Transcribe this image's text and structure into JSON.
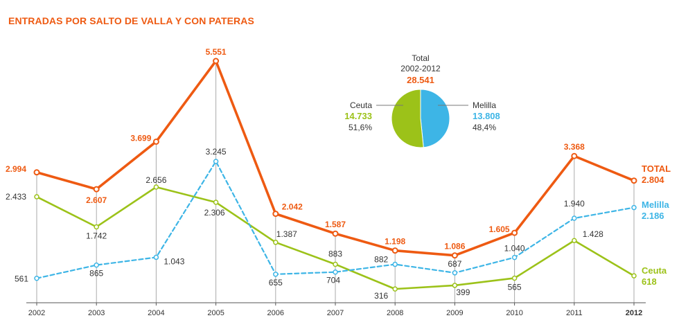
{
  "title": "ENTRADAS POR SALTO DE VALLA Y CON PATERAS",
  "colors": {
    "total": "#ee5a12",
    "melilla": "#3db5e6",
    "ceuta": "#9cc219",
    "grid": "#aaaaaa",
    "text": "#333333"
  },
  "chart_data": {
    "type": "line",
    "title": "ENTRADAS POR SALTO DE VALLA Y CON PATERAS",
    "categories": [
      "2002",
      "2003",
      "2004",
      "2005",
      "2006",
      "2007",
      "2008",
      "2009",
      "2010",
      "2011",
      "2012"
    ],
    "series": [
      {
        "name": "TOTAL",
        "end_value_label": "2.804",
        "values": [
          2994,
          2607,
          3699,
          5551,
          2042,
          1587,
          1198,
          1086,
          1605,
          3368,
          2804
        ],
        "labels": [
          "2.994",
          "2.607",
          "3.699",
          "5.551",
          "2.042",
          "1.587",
          "1.198",
          "1.086",
          "1.605",
          "3.368",
          "2.804"
        ],
        "color": "#ee5a12",
        "style": "solid"
      },
      {
        "name": "Melilla",
        "end_value_label": "2.186",
        "values": [
          561,
          865,
          1043,
          3245,
          655,
          704,
          882,
          687,
          1040,
          1940,
          2186
        ],
        "labels": [
          "561",
          "865",
          "1.043",
          "3.245",
          "655",
          "704",
          "882",
          "687",
          "1.040",
          "1.940",
          "2.186"
        ],
        "color": "#3db5e6",
        "style": "dashed"
      },
      {
        "name": "Ceuta",
        "end_value_label": "618",
        "values": [
          2433,
          1742,
          2656,
          2306,
          1387,
          883,
          316,
          399,
          565,
          1428,
          618
        ],
        "labels": [
          "2.433",
          "1.742",
          "2.656",
          "2.306",
          "1.387",
          "883",
          "316",
          "399",
          "565",
          "1.428",
          "618"
        ],
        "color": "#9cc219",
        "style": "solid"
      }
    ],
    "ylim": [
      0,
      5551
    ],
    "grid": false,
    "pie": {
      "title": "Total\n2002-2012",
      "title_line1": "Total",
      "title_line2": "2002-2012",
      "total_label": "28.541",
      "slices": [
        {
          "name": "Ceuta",
          "value_label": "14.733",
          "percent_label": "51,6%",
          "value": 14733,
          "percent": 51.6,
          "color": "#9cc219"
        },
        {
          "name": "Melilla",
          "value_label": "13.808",
          "percent_label": "48,4%",
          "value": 13808,
          "percent": 48.4,
          "color": "#3db5e6"
        }
      ]
    }
  }
}
